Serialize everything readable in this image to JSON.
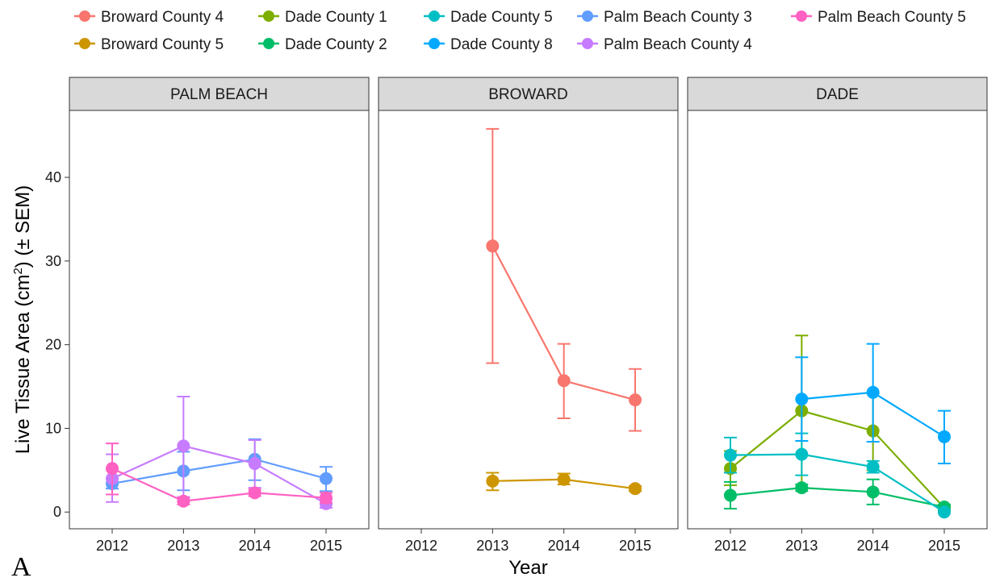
{
  "chart_data": {
    "type": "line",
    "facets": [
      "PALM BEACH",
      "BROWARD",
      "DADE"
    ],
    "x": [
      2012,
      2013,
      2014,
      2015
    ],
    "xlabel": "Year",
    "ylabel_main": "Live Tissue Area (cm",
    "ylabel_sup": "2",
    "ylabel_tail": ") (± SEM)",
    "ylim": [
      -2,
      48
    ],
    "yticks": [
      0,
      10,
      20,
      30,
      40
    ],
    "panel_tag": "A",
    "legend_position": "top",
    "series": [
      {
        "name": "Broward County 4",
        "color": "#F8766D",
        "facet": 1,
        "values": [
          null,
          31.8,
          15.7,
          13.4
        ],
        "errors": [
          null,
          [
            17.8,
            45.8
          ],
          [
            11.2,
            20.1
          ],
          [
            9.7,
            17.1
          ]
        ]
      },
      {
        "name": "Broward County 5",
        "color": "#CD9600",
        "facet": 1,
        "values": [
          null,
          3.7,
          3.9,
          2.8
        ],
        "errors": [
          null,
          [
            2.6,
            4.7
          ],
          [
            3.3,
            4.6
          ],
          [
            2.5,
            3.1
          ]
        ]
      },
      {
        "name": "Dade County 1",
        "color": "#7CAE00",
        "facet": 2,
        "values": [
          5.2,
          12.1,
          9.7,
          0.5
        ],
        "errors": [
          [
            3.2,
            7.3
          ],
          [
            2.9,
            21.1
          ],
          [
            5.0,
            14.2
          ],
          [
            0.2,
            0.8
          ]
        ]
      },
      {
        "name": "Dade County 2",
        "color": "#00BE67",
        "facet": 2,
        "values": [
          2.0,
          2.9,
          2.4,
          0.6
        ],
        "errors": [
          [
            0.4,
            3.6
          ],
          [
            2.5,
            3.3
          ],
          [
            0.9,
            3.9
          ],
          [
            0.3,
            0.9
          ]
        ]
      },
      {
        "name": "Dade County 5",
        "color": "#00BFC4",
        "facet": 2,
        "values": [
          6.8,
          6.9,
          5.4,
          0.0
        ],
        "errors": [
          [
            4.7,
            8.9
          ],
          [
            4.4,
            9.4
          ],
          [
            4.7,
            6.1
          ],
          [
            0.0,
            0.0
          ]
        ]
      },
      {
        "name": "Dade County 8",
        "color": "#00A9FF",
        "facet": 2,
        "values": [
          null,
          13.5,
          14.3,
          9.0
        ],
        "errors": [
          null,
          [
            8.5,
            18.5
          ],
          [
            8.4,
            20.1
          ],
          [
            5.8,
            12.1
          ]
        ]
      },
      {
        "name": "Palm Beach County 3",
        "color": "#619CFF",
        "facet": 0,
        "values": [
          3.4,
          4.9,
          6.3,
          4.0
        ],
        "errors": [
          [
            2.8,
            4.0
          ],
          [
            2.6,
            7.2
          ],
          [
            3.8,
            8.7
          ],
          [
            2.5,
            5.4
          ]
        ]
      },
      {
        "name": "Palm Beach County 4",
        "color": "#C77CFF",
        "facet": 0,
        "values": [
          4.0,
          7.9,
          5.8,
          1.0
        ],
        "errors": [
          [
            1.2,
            6.9
          ],
          [
            1.8,
            13.8
          ],
          [
            2.9,
            8.6
          ],
          [
            0.5,
            1.5
          ]
        ]
      },
      {
        "name": "Palm Beach County 5",
        "color": "#FF61C3",
        "facet": 0,
        "values": [
          5.2,
          1.3,
          2.3,
          1.7
        ],
        "errors": [
          [
            2.1,
            8.2
          ],
          [
            0.9,
            1.7
          ],
          [
            1.9,
            2.7
          ],
          [
            1.1,
            2.3
          ]
        ]
      }
    ]
  }
}
